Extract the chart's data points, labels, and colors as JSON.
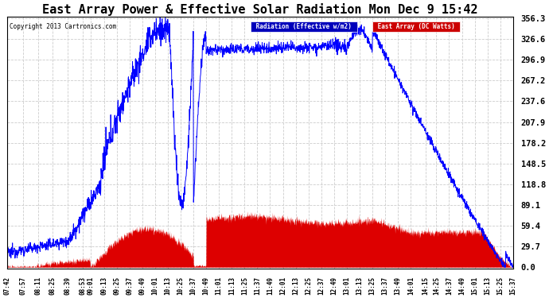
{
  "title": "East Array Power & Effective Solar Radiation Mon Dec 9 15:42",
  "copyright": "Copyright 2013 Cartronics.com",
  "y_ticks": [
    0.0,
    29.7,
    59.4,
    89.1,
    118.8,
    148.5,
    178.2,
    207.9,
    237.6,
    267.2,
    296.9,
    326.6,
    356.3
  ],
  "x_labels": [
    "07:42",
    "07:57",
    "08:11",
    "08:25",
    "08:39",
    "08:53",
    "09:01",
    "09:13",
    "09:25",
    "09:37",
    "09:49",
    "10:01",
    "10:13",
    "10:25",
    "10:37",
    "10:49",
    "11:01",
    "11:13",
    "11:25",
    "11:37",
    "11:49",
    "12:01",
    "12:13",
    "12:25",
    "12:37",
    "12:49",
    "13:01",
    "13:13",
    "13:25",
    "13:37",
    "13:49",
    "14:01",
    "14:15",
    "14:25",
    "14:37",
    "14:49",
    "15:01",
    "15:13",
    "15:25",
    "15:37"
  ],
  "background_color": "#ffffff",
  "grid_color": "#cccccc",
  "title_fontsize": 11,
  "ylim": [
    0.0,
    356.3
  ],
  "radiation_color": "#0000ff",
  "east_color": "#dd0000",
  "legend_blue_bg": "#0000bb",
  "legend_red_bg": "#cc0000"
}
